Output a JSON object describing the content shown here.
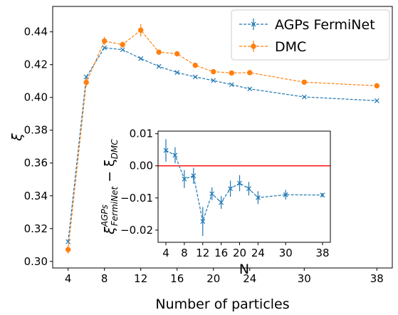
{
  "chart_data": [
    {
      "type": "line",
      "title": "",
      "xlabel": "Number of particles",
      "ylabel": "ξ",
      "xlim": [
        2.3,
        39.7
      ],
      "ylim": [
        0.296,
        0.4555
      ],
      "xticks": [
        4,
        8,
        12,
        16,
        20,
        24,
        30,
        38
      ],
      "xtick_labels": [
        "4",
        "8",
        "12",
        "16",
        "20",
        "24",
        "30",
        "38"
      ],
      "yticks": [
        0.3,
        0.32,
        0.34,
        0.36,
        0.38,
        0.4,
        0.42,
        0.44
      ],
      "ytick_labels": [
        "0.30",
        "0.32",
        "0.34",
        "0.36",
        "0.38",
        "0.40",
        "0.42",
        "0.44"
      ],
      "legend_position": "top-right",
      "grid": false,
      "series": [
        {
          "name": "AGPs FermiNet",
          "color": "#1f77b4",
          "marker": "x",
          "linestyle": "dashed",
          "x": [
            4,
            6,
            8,
            10,
            12,
            14,
            16,
            18,
            20,
            22,
            24,
            30,
            38
          ],
          "y": [
            0.312,
            0.4125,
            0.4303,
            0.4291,
            0.4237,
            0.4189,
            0.4152,
            0.4125,
            0.4103,
            0.4078,
            0.4052,
            0.4003,
            0.398
          ],
          "err": [
            0,
            0,
            0,
            0,
            0,
            0,
            0,
            0,
            0,
            0,
            0,
            0,
            0
          ]
        },
        {
          "name": "DMC",
          "color": "#ff7f0e",
          "marker": "o",
          "linestyle": "dashed",
          "x": [
            4,
            6,
            8,
            10,
            12,
            14,
            16,
            18,
            20,
            22,
            24,
            30,
            38
          ],
          "y": [
            0.3072,
            0.4092,
            0.4344,
            0.4322,
            0.441,
            0.4276,
            0.4266,
            0.4196,
            0.4157,
            0.4149,
            0.4151,
            0.4093,
            0.4071
          ],
          "err": [
            0.0025,
            0.0025,
            0.0025,
            0.0018,
            0.0038,
            0.0015,
            0.0015,
            0.0016,
            0.0015,
            0.0014,
            0.0014,
            0.0012,
            0.0012
          ]
        }
      ]
    },
    {
      "type": "line",
      "title": "",
      "xlabel": "N",
      "ylabel": "ξ^{AGPs}_{FermiNet} − ξ_{DMC}",
      "ylabel_main": "ξ",
      "ylabel_sup": "AGPs",
      "ylabel_sub": "FermiNet",
      "ylabel_rest": "− ξ",
      "ylabel_rest_sub": "DMC",
      "xlim": [
        2.3,
        39.7
      ],
      "ylim": [
        -0.0238,
        0.0108
      ],
      "xticks": [
        4,
        8,
        12,
        16,
        20,
        24,
        30,
        38
      ],
      "xtick_labels": [
        "4",
        "8",
        "12",
        "16",
        "20",
        "24",
        "30",
        "38"
      ],
      "yticks": [
        0.01,
        0.0,
        -0.01,
        -0.02
      ],
      "ytick_labels": [
        "0.01",
        "0.00",
        "−0.01",
        "−0.02"
      ],
      "reference_line": {
        "y": 0.0,
        "color": "#ff0000"
      },
      "series": [
        {
          "color": "#1f77b4",
          "marker": "x",
          "linestyle": "dashed",
          "x": [
            4,
            6,
            8,
            10,
            12,
            14,
            16,
            18,
            20,
            22,
            24,
            30,
            38
          ],
          "y": [
            0.0048,
            0.0033,
            -0.0041,
            -0.0031,
            -0.0173,
            -0.0087,
            -0.0114,
            -0.0071,
            -0.0054,
            -0.0071,
            -0.0099,
            -0.009,
            -0.0091
          ],
          "err": [
            0.0035,
            0.0025,
            0.0028,
            0.0025,
            0.0045,
            0.002,
            0.002,
            0.0025,
            0.0025,
            0.0021,
            0.002,
            0.0015,
            0.0006
          ]
        }
      ]
    }
  ]
}
